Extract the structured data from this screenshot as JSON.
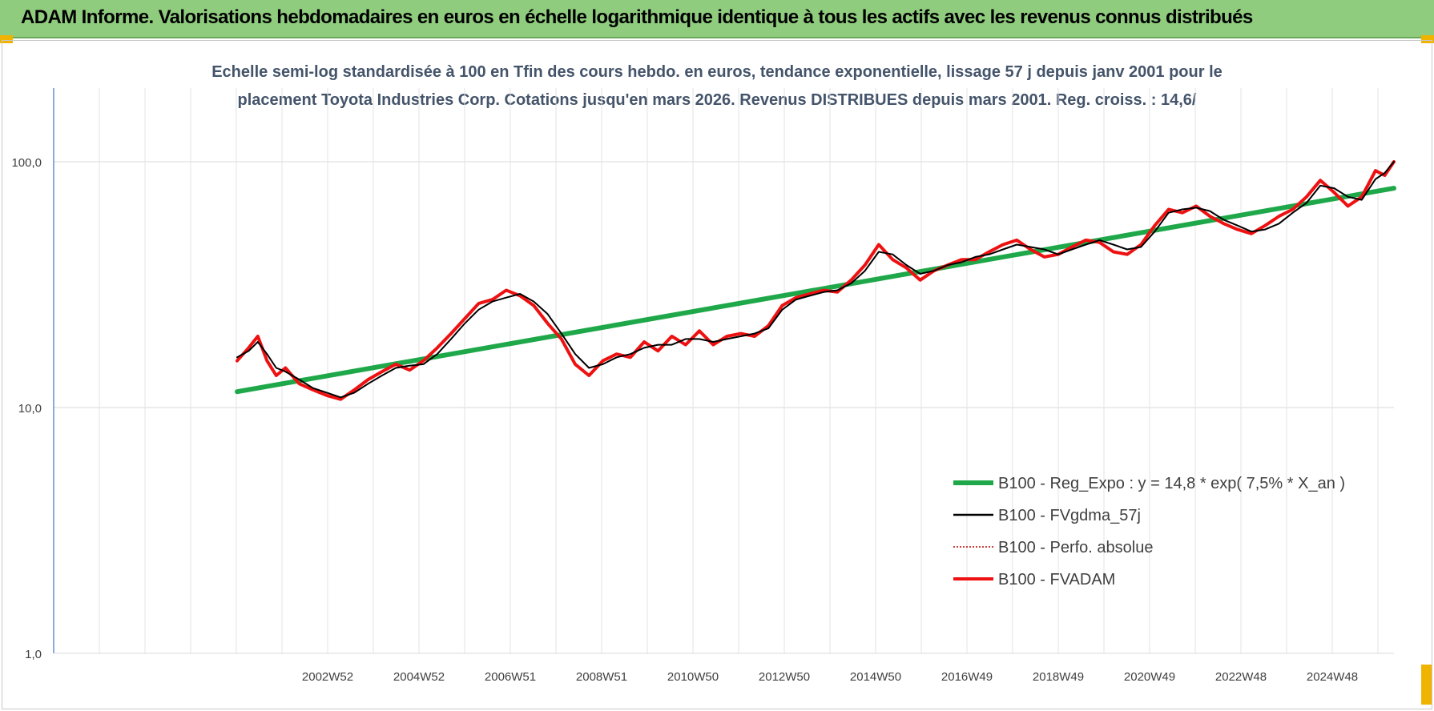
{
  "banner": {
    "title": "ADAM Informe. Valorisations hebdomadaires en euros en échelle logarithmique identique à tous les actifs avec les revenus connus distribués"
  },
  "colors": {
    "banner_bg": "#8fcc7e",
    "regression": "#1fa84a",
    "fvgdma": "#000000",
    "perfo": "#c00000",
    "fvadam": "#ee1111"
  },
  "chart_data": {
    "type": "line",
    "title_lines": [
      "Echelle semi-log standardisée à 100 en Tfin des cours hebdo. en euros, tendance exponentielle, lissage 57 j depuis janv 2001 pour le",
      "placement Toyota Industries Corp. Cotations jusqu'en mars 2026. Revenus DISTRIBUES depuis mars 2001. Reg. croiss. : 14,6/"
    ],
    "y_scale": "log",
    "ylim": [
      1,
      200
    ],
    "y_ticks": [
      "1,0",
      "10,0",
      "100,0"
    ],
    "x_range": [
      2001.05,
      2026.2
    ],
    "x_tick_labels": [
      "2002W52",
      "2004W52",
      "2006W51",
      "2008W51",
      "2010W50",
      "2012W50",
      "2014W50",
      "2016W49",
      "2018W49",
      "2020W49",
      "2022W48",
      "2024W48"
    ],
    "legend_position": "bottom-right",
    "series": [
      {
        "name": "B100 - Reg_Expo : y = 14,8 * exp( 7,5% *  X_an )",
        "style": "thick-line",
        "x": [
          2001.05,
          2026.2
        ],
        "y": [
          11.6,
          78
        ]
      },
      {
        "name": "B100 - FVgdma_57j",
        "style": "line",
        "x": [
          2001.05,
          2001.3,
          2001.5,
          2001.7,
          2001.9,
          2002.1,
          2002.4,
          2002.7,
          2003.0,
          2003.3,
          2003.6,
          2003.9,
          2004.2,
          2004.5,
          2004.8,
          2005.1,
          2005.4,
          2005.7,
          2006.0,
          2006.3,
          2006.6,
          2006.9,
          2007.2,
          2007.5,
          2007.8,
          2008.1,
          2008.4,
          2008.7,
          2009.0,
          2009.3,
          2009.6,
          2009.9,
          2010.2,
          2010.5,
          2010.8,
          2011.1,
          2011.4,
          2011.7,
          2012.0,
          2012.3,
          2012.6,
          2012.9,
          2013.2,
          2013.5,
          2013.8,
          2014.1,
          2014.4,
          2014.7,
          2015.0,
          2015.3,
          2015.6,
          2015.9,
          2016.2,
          2016.5,
          2016.8,
          2017.1,
          2017.4,
          2017.7,
          2018.0,
          2018.3,
          2018.6,
          2018.9,
          2019.2,
          2019.5,
          2019.8,
          2020.1,
          2020.4,
          2020.7,
          2021.0,
          2021.3,
          2021.6,
          2021.9,
          2022.2,
          2022.5,
          2022.8,
          2023.1,
          2023.4,
          2023.7,
          2024.0,
          2024.3,
          2024.6,
          2024.9,
          2025.2,
          2025.5,
          2025.8,
          2026.0,
          2026.2
        ],
        "y": [
          16,
          17,
          18.5,
          16.5,
          14.5,
          14,
          13,
          12,
          11.5,
          11,
          11.5,
          12.5,
          13.5,
          14.5,
          14.8,
          15,
          16.5,
          19,
          22,
          25,
          27,
          28,
          29,
          27,
          24,
          20,
          16.5,
          14.5,
          15,
          16,
          16.5,
          17.5,
          18,
          18,
          19,
          19,
          18.5,
          19,
          19.5,
          20,
          21,
          25,
          27.5,
          28.5,
          29.5,
          30,
          32,
          36,
          43,
          42,
          38,
          35,
          36,
          38,
          39,
          41,
          42,
          44,
          46,
          45,
          44,
          42,
          44,
          46,
          48,
          46,
          44,
          45,
          52,
          62,
          64,
          65,
          63,
          58,
          55,
          52,
          53,
          56,
          62,
          68,
          80,
          78,
          72,
          70,
          85,
          90,
          100
        ]
      },
      {
        "name": "B100 - Perfo. absolue",
        "style": "dotted",
        "x": [],
        "y": []
      },
      {
        "name": "B100 - FVADAM",
        "style": "thick-line",
        "x": [
          2001.05,
          2001.3,
          2001.5,
          2001.7,
          2001.9,
          2002.1,
          2002.4,
          2002.7,
          2003.0,
          2003.3,
          2003.6,
          2003.9,
          2004.2,
          2004.5,
          2004.8,
          2005.1,
          2005.4,
          2005.7,
          2006.0,
          2006.3,
          2006.6,
          2006.9,
          2007.2,
          2007.5,
          2007.8,
          2008.1,
          2008.4,
          2008.7,
          2009.0,
          2009.3,
          2009.6,
          2009.9,
          2010.2,
          2010.5,
          2010.8,
          2011.1,
          2011.4,
          2011.7,
          2012.0,
          2012.3,
          2012.6,
          2012.9,
          2013.2,
          2013.5,
          2013.8,
          2014.1,
          2014.4,
          2014.7,
          2015.0,
          2015.3,
          2015.6,
          2015.9,
          2016.2,
          2016.5,
          2016.8,
          2017.1,
          2017.4,
          2017.7,
          2018.0,
          2018.3,
          2018.6,
          2018.9,
          2019.2,
          2019.5,
          2019.8,
          2020.1,
          2020.4,
          2020.7,
          2021.0,
          2021.3,
          2021.6,
          2021.9,
          2022.2,
          2022.5,
          2022.8,
          2023.1,
          2023.4,
          2023.7,
          2024.0,
          2024.3,
          2024.6,
          2024.9,
          2025.2,
          2025.5,
          2025.8,
          2026.0,
          2026.2
        ],
        "y": [
          15.5,
          17.5,
          19.5,
          15.5,
          13.5,
          14.5,
          12.5,
          11.8,
          11.2,
          10.8,
          11.8,
          13,
          14,
          15,
          14.2,
          15.5,
          17.5,
          20,
          23,
          26.5,
          27.5,
          30,
          28.5,
          26,
          22,
          19,
          15,
          13.5,
          15.5,
          16.5,
          16,
          18.5,
          17,
          19.5,
          18,
          20.5,
          18,
          19.5,
          20,
          19.5,
          21.5,
          26,
          28,
          29,
          30,
          29.5,
          33,
          38,
          46,
          40,
          37,
          33,
          36,
          38,
          40,
          40,
          43,
          46,
          48,
          44,
          41,
          42,
          45,
          48,
          47,
          43,
          42,
          46,
          55,
          64,
          62,
          66,
          60,
          56,
          53,
          51,
          55,
          60,
          64,
          72,
          84,
          75,
          66,
          72,
          92,
          88,
          100
        ]
      }
    ]
  }
}
